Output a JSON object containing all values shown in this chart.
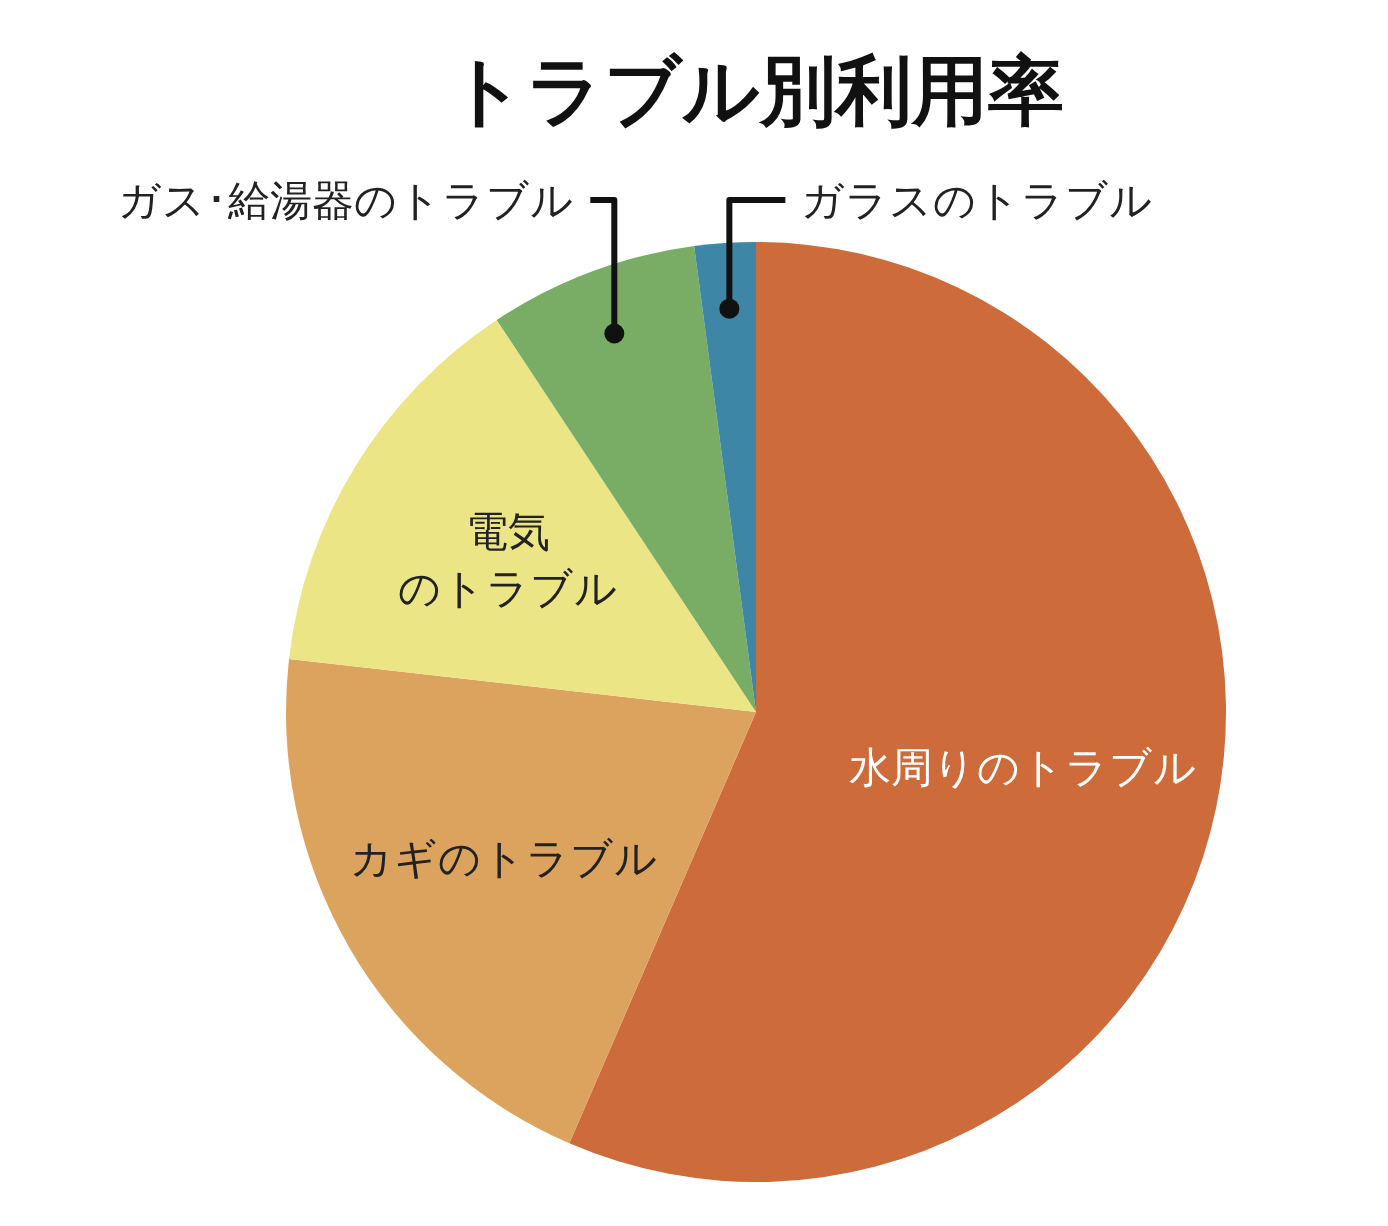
{
  "chart_data": {
    "type": "pie",
    "title": "トラブル別利用率",
    "categories": [
      "水周りのトラブル",
      "カギのトラブル",
      "電気のトラブル",
      "ガス･給湯器のトラブル",
      "ガラスのトラブル"
    ],
    "values": [
      56.5,
      20.3,
      13.9,
      7.2,
      2.1
    ],
    "colors": [
      "#cd6b3b",
      "#dca35e",
      "#ece585",
      "#79ad66",
      "#3d86a5"
    ]
  }
}
